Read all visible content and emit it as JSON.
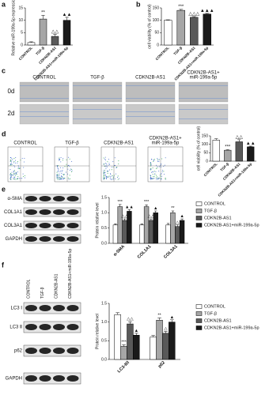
{
  "chart_data": [
    {
      "type": "bar",
      "ylabel": "Relative miR-199a-5p expression",
      "categories": [
        "CONTROL",
        "TGF-β",
        "CDKN2B-AS1",
        "CDKN2B-AS1+miR-199a-5p"
      ],
      "values": [
        1,
        10.5,
        3.5,
        10
      ],
      "errors": [
        0.3,
        1.5,
        0.8,
        1.2
      ],
      "annotations": [
        null,
        "**",
        "△△",
        "▲▲"
      ],
      "colors": [
        "#ffffff",
        "#a6a6a6",
        "#595959",
        "#1a1a1a"
      ],
      "ylim": [
        0,
        15
      ],
      "yticks": [
        0,
        5,
        10,
        15
      ]
    },
    {
      "type": "bar",
      "ylabel": "cell viability (% of control)",
      "categories": [
        "CONTROL",
        "TGF-β",
        "CDKN2B-AS1",
        "CDKN2B-AS1+miR-199a-5p"
      ],
      "values": [
        100,
        140,
        112,
        125
      ],
      "errors": [
        2,
        4,
        3,
        3
      ],
      "annotations": [
        null,
        "***",
        "△△△",
        "▲▲▲"
      ],
      "colors": [
        "#ffffff",
        "#a6a6a6",
        "#595959",
        "#1a1a1a"
      ],
      "ylim": [
        0,
        150
      ],
      "yticks": [
        0,
        50,
        100,
        150
      ]
    },
    {
      "type": "bar",
      "ylabel": "cell viability (% of control)",
      "categories": [
        "CONTROL",
        "TGF-β",
        "CDKN2B-AS1",
        "CDKN2B-AS1+miR-199a-5p"
      ],
      "values": [
        125,
        65,
        115,
        85
      ],
      "errors": [
        8,
        3,
        12,
        4
      ],
      "annotations": [
        null,
        "***",
        "△△",
        "▲▲"
      ],
      "colors": [
        "#ffffff",
        "#a6a6a6",
        "#595959",
        "#1a1a1a"
      ],
      "ylim": [
        0,
        150
      ],
      "yticks": [
        0,
        50,
        100,
        150
      ]
    },
    {
      "type": "grouped_bar",
      "ylabel": "Protein relative level",
      "categories": [
        "α-SMA",
        "COL1A1",
        "COL3A1"
      ],
      "series": [
        {
          "name": "CONTROL",
          "color": "#ffffff",
          "values": [
            0.6,
            0.6,
            0.6
          ],
          "errors": [
            0.04,
            0.04,
            0.05
          ]
        },
        {
          "name": "TGF-β",
          "color": "#a6a6a6",
          "values": [
            1.2,
            1.2,
            1.0
          ],
          "errors": [
            0.07,
            0.06,
            0.06
          ],
          "annotations": [
            "***",
            "***",
            "**"
          ]
        },
        {
          "name": "CDKN2B-AS1",
          "color": "#595959",
          "values": [
            0.75,
            0.75,
            0.55
          ],
          "errors": [
            0.05,
            0.05,
            0.05
          ],
          "annotations": [
            "△△",
            "△△",
            "△"
          ]
        },
        {
          "name": "CDKN2B-AS1+miR-199a-5p",
          "color": "#1a1a1a",
          "values": [
            1.05,
            1.0,
            0.75
          ],
          "errors": [
            0.05,
            0.06,
            0.05
          ],
          "annotations": [
            "▲▲",
            "▲",
            "▲"
          ]
        }
      ],
      "ylim": [
        0,
        1.5
      ],
      "yticks": [
        {
          "value": 0,
          "label": "0.0"
        },
        0.5,
        {
          "value": 1,
          "label": "1.0"
        },
        1.5
      ],
      "legend": "right"
    },
    {
      "type": "grouped_bar",
      "ylabel": "Protein relative level",
      "categories": [
        "LC3-II/I",
        "p62"
      ],
      "series": [
        {
          "name": "CONTROL",
          "color": "#ffffff",
          "values": [
            1.2,
            0.6
          ],
          "errors": [
            0.05,
            0.04
          ]
        },
        {
          "name": "TGF-β",
          "color": "#a6a6a6",
          "values": [
            0.35,
            1.05
          ],
          "errors": [
            0.04,
            0.06
          ],
          "annotations": [
            "***",
            "**"
          ]
        },
        {
          "name": "CDKN2B-AS1",
          "color": "#595959",
          "values": [
            0.95,
            0.7
          ],
          "errors": [
            0.06,
            0.05
          ],
          "annotations": [
            "△△",
            "△"
          ]
        },
        {
          "name": "CDKN2B-AS1+miR-199a-5p",
          "color": "#1a1a1a",
          "values": [
            0.65,
            1.0
          ],
          "errors": [
            0.05,
            0.06
          ],
          "annotations": [
            "▲",
            "▲"
          ]
        }
      ],
      "ylim": [
        0,
        1.5
      ],
      "yticks": [
        {
          "value": 0,
          "label": "0.0"
        },
        0.5,
        {
          "value": 1,
          "label": "1.0"
        },
        1.5
      ],
      "legend": "right"
    }
  ],
  "panel_letters": [
    "a",
    "b",
    "c",
    "d",
    "e",
    "f"
  ],
  "scratch": {
    "columns": [
      [
        "CONTROL"
      ],
      [
        "TGF-β"
      ],
      [
        "CDKN2B-AS1"
      ],
      [
        "CDKN2B-AS1+",
        "miR-199a-5p"
      ]
    ],
    "rows": [
      "0d",
      "2d"
    ]
  },
  "flow": {
    "columns": [
      [
        "CONTROL"
      ],
      [
        "TGF-β"
      ],
      [
        "CDKN2B-AS1"
      ],
      [
        "CDKN2B-AS1+",
        "miR-199a-5p"
      ]
    ]
  },
  "blot_e": {
    "rows": [
      "α-SMA",
      "COL1A1",
      "COL3A1",
      "GAPDH"
    ]
  },
  "blot_f": {
    "lanes": [
      "CONTROL",
      "TGF-β",
      "CDKN2B-AS1",
      "CDKN2B-AS1+miR-199a-5p"
    ],
    "rows": [
      "LC3 Ⅰ",
      "LC3 Ⅱ",
      "p62",
      "GAPDH"
    ]
  }
}
